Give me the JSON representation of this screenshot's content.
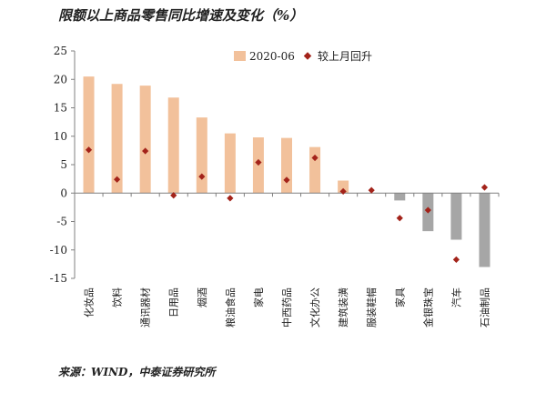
{
  "chart_data": {
    "type": "bar",
    "title": "限额以上商品零售同比增速及变化（%）",
    "categories": [
      "化妆品",
      "饮料",
      "通讯器材",
      "日用品",
      "烟酒",
      "粮油食品",
      "家电",
      "中西药品",
      "文化办公",
      "建筑装潢",
      "服装鞋帽",
      "家具",
      "金银珠宝",
      "汽车",
      "石油制品"
    ],
    "series": [
      {
        "name": "2020-06",
        "kind": "bar",
        "values": [
          20.5,
          19.2,
          18.9,
          16.8,
          13.3,
          10.5,
          9.8,
          9.7,
          8.1,
          2.2,
          0,
          -1.3,
          -6.7,
          -8.2,
          -13.0
        ]
      },
      {
        "name": "较上月回升",
        "kind": "marker",
        "values": [
          7.6,
          2.4,
          7.4,
          -0.4,
          2.9,
          -0.9,
          5.4,
          2.3,
          6.2,
          0.3,
          0.5,
          -4.4,
          -3.0,
          -11.7,
          1.0
        ]
      }
    ],
    "ylim": [
      -15,
      25
    ],
    "yticks": [
      "25",
      "20",
      "15",
      "10",
      "5",
      "0",
      "-5",
      "-10",
      "-15"
    ],
    "ytick_values": [
      25,
      20,
      15,
      10,
      5,
      0,
      -5,
      -10,
      -15
    ],
    "grid": false,
    "legend_position": "top-right"
  },
  "colors": {
    "bar_positive": "#F2C19B",
    "bar_negative": "#A6A6A6",
    "marker": "#A3231A",
    "axis": "#808080"
  },
  "source": "来源：WIND，中泰证券研究所"
}
